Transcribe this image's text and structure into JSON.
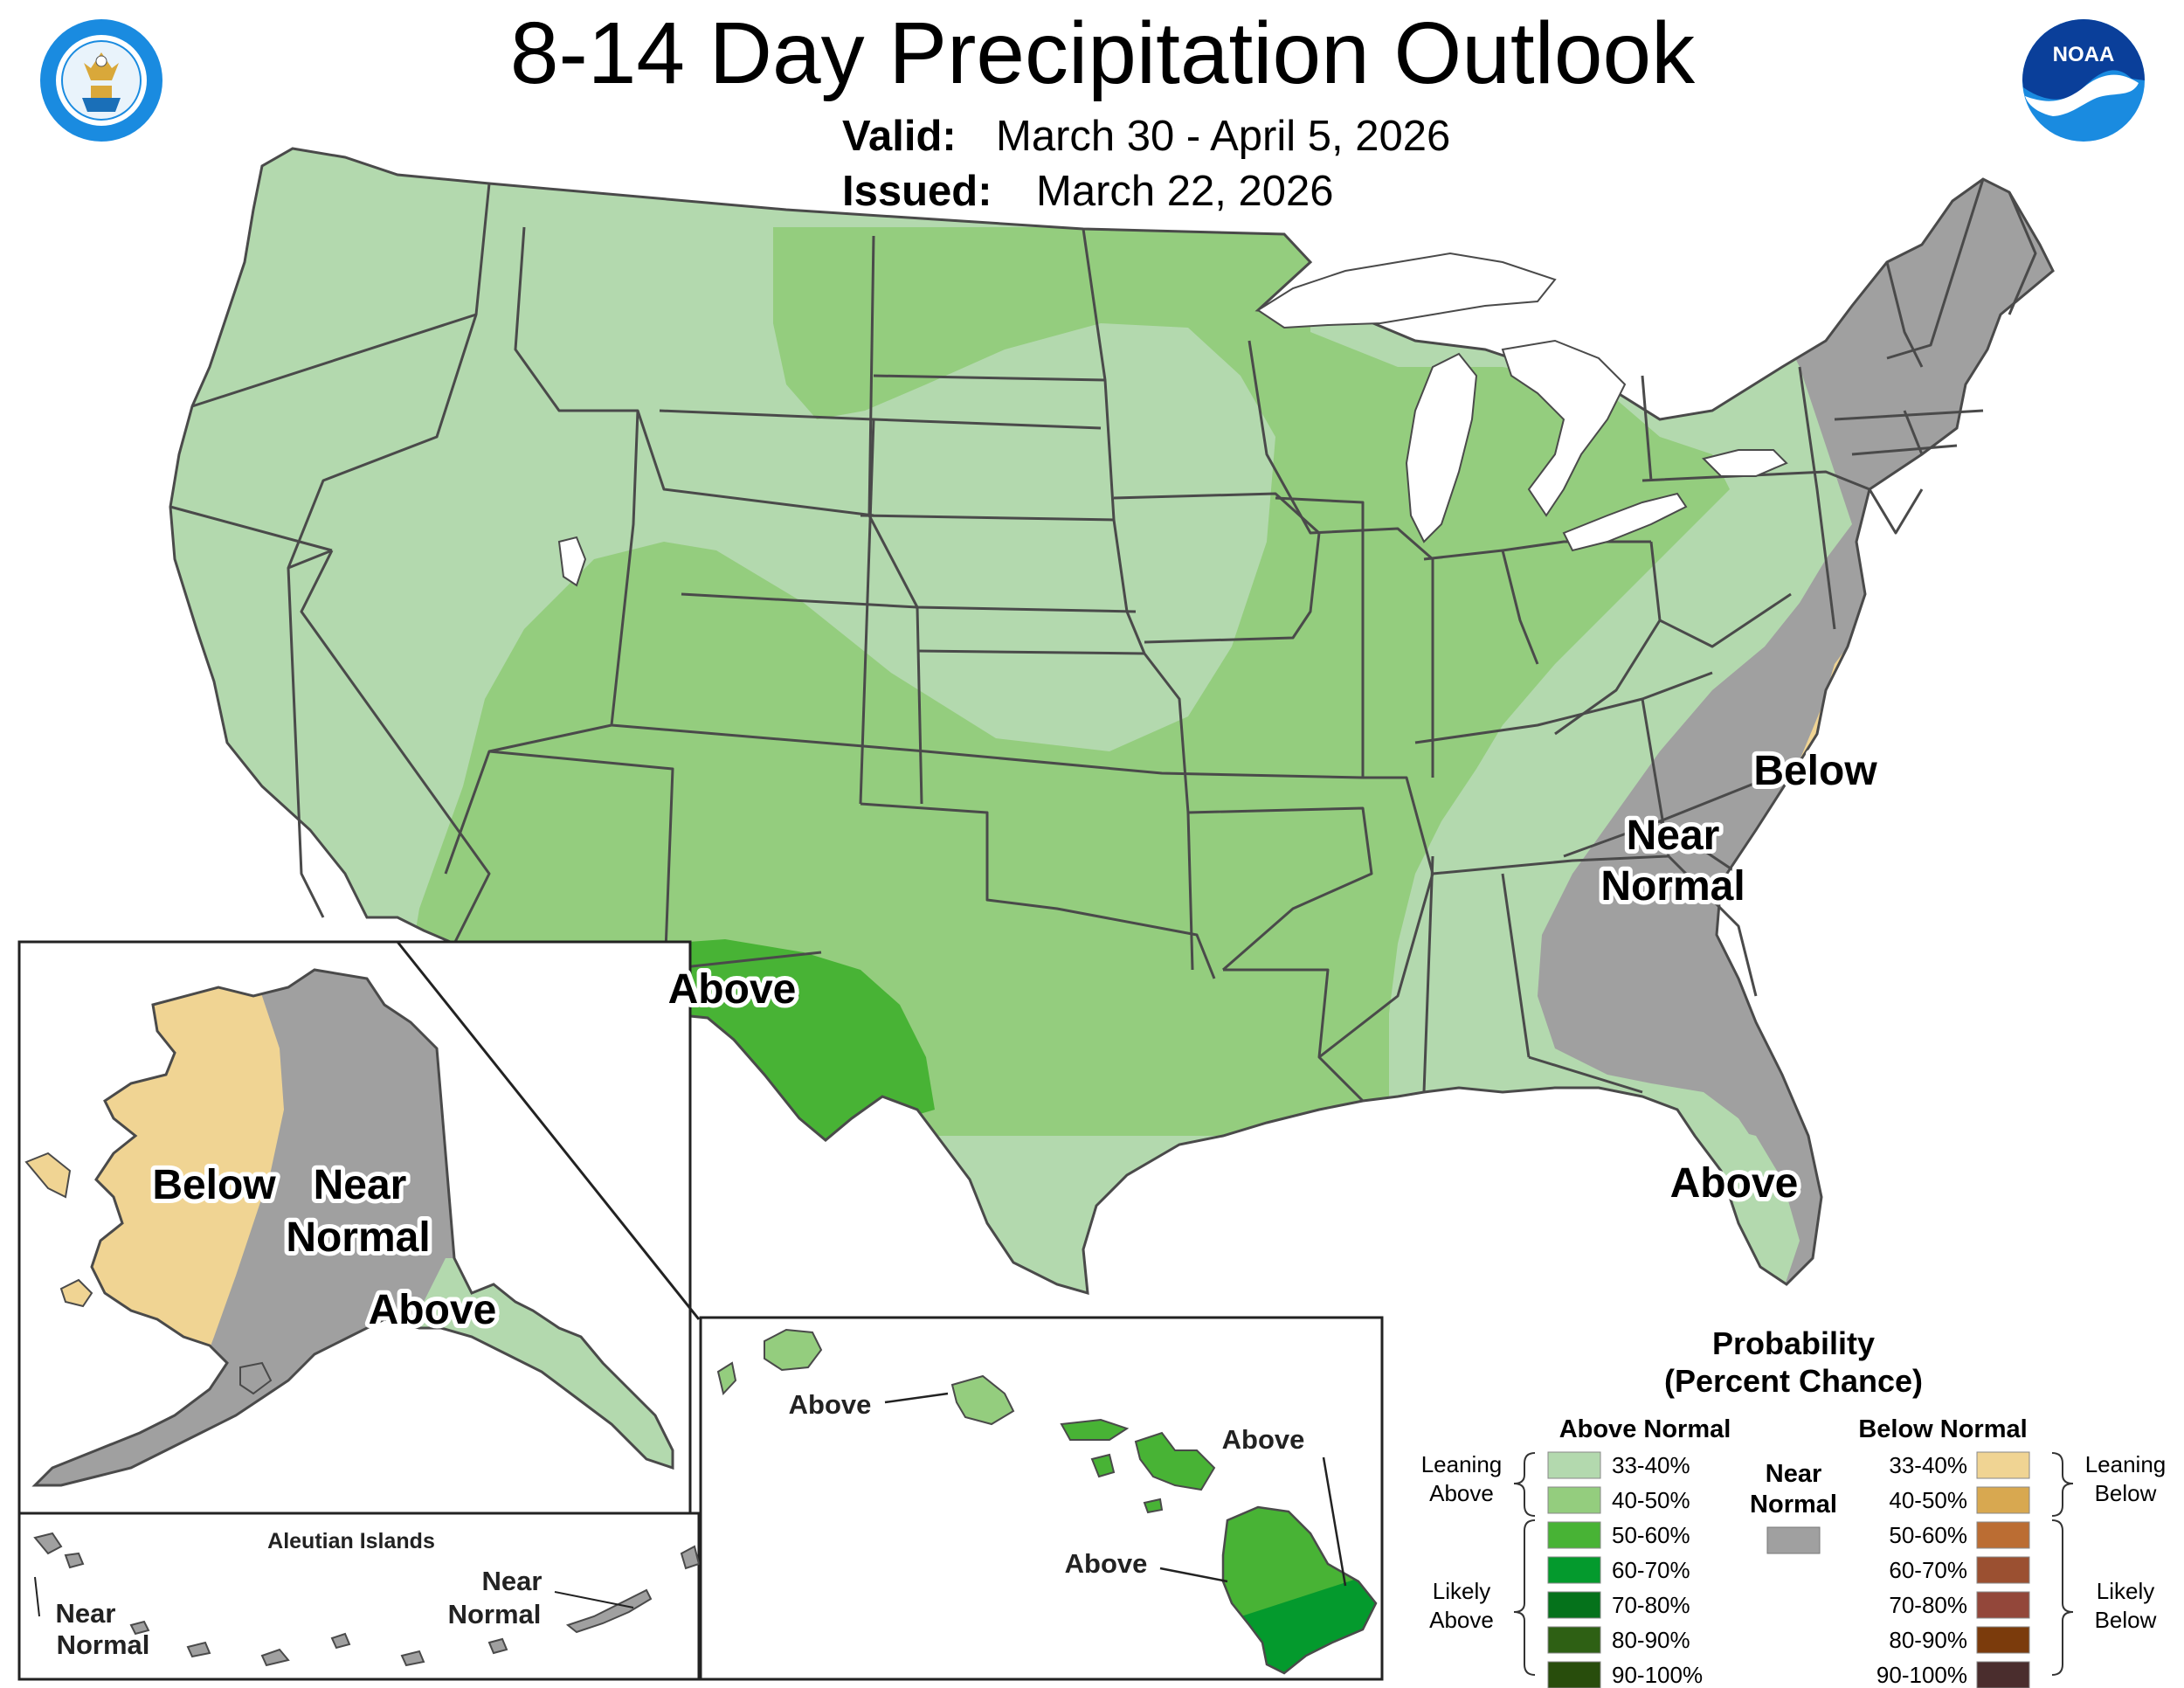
{
  "title": "8-14 Day Precipitation Outlook",
  "valid_label": "Valid:",
  "valid_dates": "March 30 - April 5, 2026",
  "issued_label": "Issued:",
  "issued_date": "March 22, 2026",
  "logos": {
    "left": "department-of-commerce-seal",
    "right": "noaa-logo",
    "noaa_text": "NOAA"
  },
  "map_labels": {
    "conus_southwest": "Above",
    "conus_near_normal_1": "Near",
    "conus_near_normal_2": "Normal",
    "conus_below": "Below",
    "florida": "Above",
    "alaska_below": "Below",
    "alaska_near_1": "Near",
    "alaska_near_2": "Normal",
    "alaska_above": "Above",
    "aleutian_title": "Aleutian Islands",
    "aleutian_left_1": "Near",
    "aleutian_left_2": "Normal",
    "aleutian_right_1": "Near",
    "aleutian_right_2": "Normal",
    "hawaii_oahu": "Above",
    "hawaii_maui": "Above",
    "hawaii_big_island": "Above"
  },
  "legend": {
    "title_1": "Probability",
    "title_2": "(Percent Chance)",
    "above_header": "Above Normal",
    "below_header": "Below Normal",
    "near_1": "Near",
    "near_2": "Normal",
    "near_color": "#a0a0a0",
    "leaning_above_1": "Leaning",
    "leaning_above_2": "Above",
    "likely_above_1": "Likely",
    "likely_above_2": "Above",
    "leaning_below_1": "Leaning",
    "leaning_below_2": "Below",
    "likely_below_1": "Likely",
    "likely_below_2": "Below",
    "above": [
      {
        "range": "33-40%",
        "color": "#b3d9ae"
      },
      {
        "range": "40-50%",
        "color": "#94cd7e"
      },
      {
        "range": "50-60%",
        "color": "#48b335"
      },
      {
        "range": "60-70%",
        "color": "#049a2d"
      },
      {
        "range": "70-80%",
        "color": "#05721b"
      },
      {
        "range": "80-90%",
        "color": "#2e6014"
      },
      {
        "range": "90-100%",
        "color": "#284d0c"
      }
    ],
    "below": [
      {
        "range": "33-40%",
        "color": "#f0d493"
      },
      {
        "range": "40-50%",
        "color": "#d8a850"
      },
      {
        "range": "50-60%",
        "color": "#bb6d33"
      },
      {
        "range": "60-70%",
        "color": "#9b5031"
      },
      {
        "range": "70-80%",
        "color": "#93473a"
      },
      {
        "range": "80-90%",
        "color": "#7b3b0c"
      },
      {
        "range": "90-100%",
        "color": "#4a2d2d"
      }
    ]
  },
  "colors": {
    "above_33_40": "#b3d9ae",
    "above_40_50": "#94cd7e",
    "above_50_60": "#48b335",
    "above_60_70": "#049a2d",
    "near_normal": "#a0a0a0",
    "below_33_40": "#f0d493",
    "lake_white": "#ffffff",
    "noaa_blue": "#1a8be0"
  }
}
